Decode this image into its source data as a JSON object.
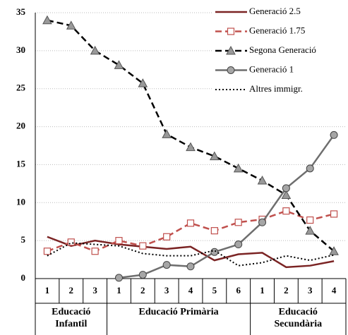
{
  "chart_data": {
    "type": "line",
    "groups": [
      {
        "label": "Educació Infantil",
        "categories": [
          "1",
          "2",
          "3"
        ]
      },
      {
        "label": "Educació Primària",
        "categories": [
          "1",
          "2",
          "3",
          "4",
          "5",
          "6"
        ]
      },
      {
        "label": "Educació Secundària",
        "categories": [
          "1",
          "2",
          "3",
          "4"
        ]
      }
    ],
    "series": [
      {
        "name": "Generació 2.5",
        "color": "#7b2424",
        "dash": "solid",
        "marker": "none",
        "values": [
          5.5,
          4.3,
          5.0,
          4.5,
          4.2,
          3.9,
          4.2,
          2.4,
          3.2,
          3.4,
          1.5,
          1.7,
          2.3
        ]
      },
      {
        "name": "Generació 1.75",
        "color": "#c0504d",
        "dash": "dashed",
        "marker": "square",
        "values": [
          3.6,
          4.8,
          3.6,
          5.0,
          4.3,
          5.5,
          7.3,
          6.3,
          7.4,
          7.8,
          8.9,
          7.7,
          8.5
        ]
      },
      {
        "name": "Segona Generació",
        "color": "#000000",
        "dash": "dashed",
        "marker": "triangle",
        "values": [
          34.0,
          33.3,
          30.0,
          28.1,
          25.7,
          19.0,
          17.3,
          16.1,
          14.5,
          12.9,
          11.0,
          6.3,
          3.6
        ]
      },
      {
        "name": "Generació 1",
        "color": "#6e6e6e",
        "dash": "solid",
        "marker": "circle",
        "values": [
          null,
          null,
          null,
          0.1,
          0.5,
          1.8,
          1.6,
          3.5,
          4.5,
          7.4,
          11.9,
          14.5,
          18.9
        ]
      },
      {
        "name": "Altres immigr.",
        "color": "#000000",
        "dash": "dotted",
        "marker": "none",
        "values": [
          3.0,
          4.7,
          4.5,
          4.3,
          3.3,
          3.0,
          3.0,
          3.7,
          1.7,
          2.1,
          3.0,
          2.4,
          3.1
        ]
      }
    ],
    "ylim": [
      0,
      35
    ],
    "yticks": [
      0,
      5,
      10,
      15,
      20,
      25,
      30,
      35
    ],
    "grid": true,
    "legend": "top-right"
  }
}
